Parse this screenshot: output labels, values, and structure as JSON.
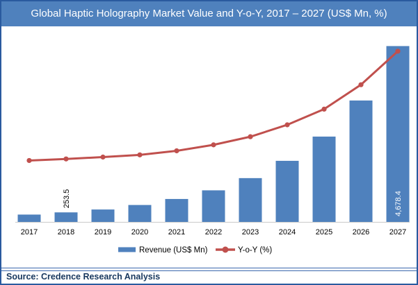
{
  "header": {
    "title": "Global Haptic Holography Market Value and Y-o-Y, 2017 – 2027 (US$ Mn, %)"
  },
  "footer": {
    "source": "Source: Credence Research Analysis"
  },
  "colors": {
    "title_bar_bg": "#4f81bd",
    "title_text": "#ffffff",
    "frame_border": "#2a5a9f",
    "separator_line": "#3a67ad",
    "source_text": "#17375e",
    "bar_fill": "#4f81bd",
    "line_stroke": "#c0504d",
    "axis_line": "#c9c9c9",
    "tick_text": "#000000"
  },
  "chart_data": {
    "type": "bar",
    "title": "Global Haptic Holography Market Value and Y-o-Y, 2017 – 2027 (US$ Mn, %)",
    "categories": [
      "2017",
      "2018",
      "2019",
      "2020",
      "2021",
      "2022",
      "2023",
      "2024",
      "2025",
      "2026",
      "2027"
    ],
    "series": [
      {
        "name": "Revenue (US$ Mn)",
        "type": "bar",
        "axis": "primary",
        "color": "#4f81bd",
        "values": [
          195,
          253.5,
          330,
          450,
          610,
          840,
          1165,
          1625,
          2270,
          3230,
          4678.4
        ]
      },
      {
        "name": "Y-o-Y (%)",
        "type": "line",
        "axis": "secondary",
        "color": "#c0504d",
        "marker": "circle",
        "values": [
          19.6,
          20.1,
          20.7,
          21.4,
          22.7,
          24.6,
          27.2,
          31.0,
          36.0,
          43.8,
          54.5
        ]
      }
    ],
    "xlabel": "",
    "ylabel": "",
    "ylim": [
      0,
      5000
    ],
    "y2lim": [
      0,
      60
    ],
    "grid": false,
    "y_axis_labels_visible": false,
    "legend_position": "bottom",
    "data_labels": [
      {
        "series": "Revenue (US$ Mn)",
        "category": "2018",
        "text": "253.5",
        "rotation": -90,
        "placement": "above-bar",
        "color": "#000000"
      },
      {
        "series": "Revenue (US$ Mn)",
        "category": "2027",
        "text": "4,678.4",
        "rotation": -90,
        "placement": "inside-bar-bottom",
        "color": "#ffffff"
      }
    ]
  }
}
